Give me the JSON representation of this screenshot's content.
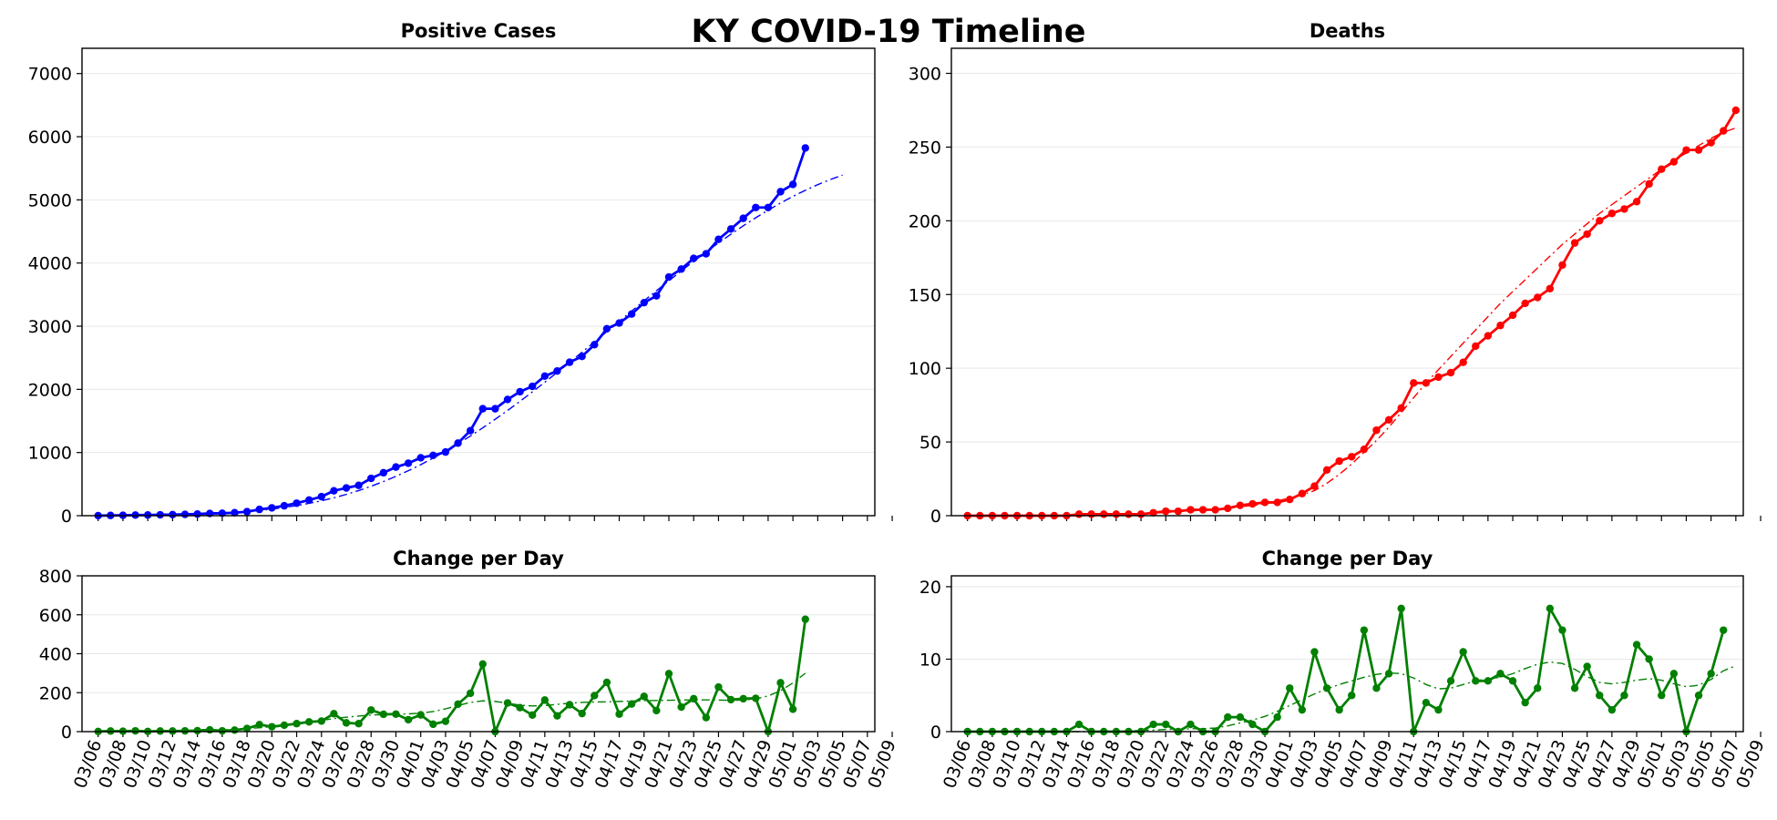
{
  "title": "KY COVID-19 Timeline",
  "colors": {
    "cases": "#0000ff",
    "deaths": "#ff0000",
    "change": "#008000",
    "grid": "#e8e8e8"
  },
  "chart_data": [
    {
      "type": "line",
      "panel": "top-left",
      "title": "Positive Cases",
      "xlabel": "",
      "ylabel": "",
      "xlim": [
        -1.3,
        62.6
      ],
      "ylim": [
        0,
        7400
      ],
      "yticks": [
        0,
        1000,
        2000,
        3000,
        4000,
        5000,
        6000,
        7000
      ],
      "grid": true,
      "series": [
        {
          "name": "Positive Cases",
          "style": "solid-markers",
          "values": [
            1,
            4,
            6,
            10,
            11,
            14,
            17,
            21,
            26,
            35,
            39,
            47,
            63,
            99,
            124,
            157,
            198,
            248,
            302,
            394,
            439,
            480,
            591,
            680,
            770,
            831,
            917,
            955,
            1008,
            1149,
            1346,
            1693,
            1693,
            1840,
            1963,
            2048,
            2210,
            2291,
            2429,
            2522,
            2707,
            2960,
            3050,
            3192,
            3373,
            3481,
            3779,
            3905,
            4074,
            4146,
            4375,
            4539,
            4708,
            4879,
            4879,
            5130,
            5245,
            5822
          ]
        },
        {
          "name": "Trend",
          "style": "dashdot",
          "values": [
            0,
            1,
            2,
            3,
            5,
            8,
            11,
            15,
            21,
            28,
            37,
            49,
            64,
            82,
            104,
            130,
            160,
            195,
            236,
            283,
            337,
            398,
            466,
            541,
            623,
            712,
            808,
            911,
            1021,
            1138,
            1261,
            1391,
            1526,
            1666,
            1811,
            1960,
            2113,
            2269,
            2428,
            2589,
            2751,
            2914,
            3077,
            3240,
            3402,
            3562,
            3720,
            3875,
            4027,
            4175,
            4319,
            4457,
            4590,
            4717,
            4837,
            4950,
            5055,
            5152,
            5241,
            5321,
            5392
          ]
        }
      ]
    },
    {
      "type": "line",
      "panel": "top-right",
      "title": "Deaths",
      "xlabel": "",
      "ylabel": "",
      "xlim": [
        -1.3,
        62.6
      ],
      "ylim": [
        0,
        317
      ],
      "yticks": [
        0,
        50,
        100,
        150,
        200,
        250,
        300
      ],
      "grid": true,
      "series": [
        {
          "name": "Deaths",
          "style": "solid-markers",
          "values": [
            0,
            0,
            0,
            0,
            0,
            0,
            0,
            0,
            0,
            1,
            1,
            1,
            1,
            1,
            1,
            2,
            3,
            3,
            4,
            4,
            4,
            5,
            7,
            8,
            9,
            9,
            11,
            15,
            20,
            31,
            37,
            40,
            45,
            58,
            65,
            73,
            90,
            90,
            94,
            97,
            104,
            115,
            122,
            129,
            136,
            144,
            148,
            154,
            170,
            185,
            191,
            200,
            205,
            208,
            213,
            225,
            235,
            240,
            248,
            248,
            253,
            261,
            275
          ]
        },
        {
          "name": "Trend",
          "style": "dashdot",
          "values": [
            0,
            0,
            0,
            0,
            0,
            0,
            0,
            0,
            0,
            0,
            0,
            0,
            1,
            1,
            1,
            2,
            2,
            3,
            3,
            4,
            4,
            5,
            6,
            7,
            8,
            10,
            12,
            14,
            17,
            22,
            28,
            35,
            43,
            51,
            60,
            70,
            80,
            90,
            99,
            108,
            117,
            126,
            135,
            144,
            152,
            160,
            168,
            176,
            184,
            191,
            198,
            205,
            211,
            217,
            223,
            229,
            235,
            241,
            246,
            251,
            256,
            260,
            263
          ]
        }
      ]
    },
    {
      "type": "line",
      "panel": "bottom-left",
      "title": "Change per Day",
      "xlabel": "",
      "ylabel": "",
      "xlim": [
        -1.3,
        62.6
      ],
      "ylim": [
        0,
        800
      ],
      "yticks": [
        0,
        200,
        400,
        600,
        800
      ],
      "grid": true,
      "x_tick_labels": [
        "03/06",
        "03/08",
        "03/10",
        "03/12",
        "03/14",
        "03/16",
        "03/18",
        "03/20",
        "03/22",
        "03/24",
        "03/26",
        "03/28",
        "03/30",
        "04/01",
        "04/03",
        "04/05",
        "04/07",
        "04/09",
        "04/11",
        "04/13",
        "04/15",
        "04/17",
        "04/19",
        "04/21",
        "04/23",
        "04/25",
        "04/27",
        "04/29",
        "05/01",
        "05/03",
        "05/05",
        "05/07",
        "05/09"
      ],
      "series": [
        {
          "name": "Change per Day",
          "style": "solid-markers",
          "values": [
            1,
            3,
            2,
            4,
            1,
            3,
            3,
            4,
            5,
            9,
            4,
            8,
            16,
            36,
            25,
            33,
            41,
            50,
            54,
            92,
            45,
            41,
            111,
            89,
            90,
            61,
            86,
            38,
            53,
            141,
            197,
            347,
            0,
            147,
            123,
            85,
            162,
            81,
            138,
            93,
            185,
            253,
            90,
            142,
            181,
            108,
            298,
            126,
            169,
            72,
            229,
            164,
            169,
            171,
            0,
            251,
            115,
            577
          ]
        },
        {
          "name": "Trend",
          "style": "dashdot",
          "values": [
            1,
            1,
            2,
            2,
            3,
            3,
            4,
            5,
            6,
            7,
            9,
            12,
            15,
            20,
            25,
            32,
            40,
            49,
            58,
            67,
            74,
            80,
            85,
            88,
            89,
            91,
            95,
            103,
            117,
            134,
            150,
            158,
            155,
            146,
            136,
            132,
            134,
            140,
            146,
            150,
            152,
            153,
            155,
            157,
            159,
            160,
            161,
            162,
            163,
            163,
            162,
            161,
            162,
            168,
            183,
            210,
            250,
            300
          ]
        }
      ]
    },
    {
      "type": "line",
      "panel": "bottom-right",
      "title": "Change per Day",
      "xlabel": "",
      "ylabel": "",
      "xlim": [
        -1.3,
        62.6
      ],
      "ylim": [
        0,
        21.5
      ],
      "yticks": [
        0,
        10,
        20
      ],
      "grid": true,
      "x_tick_labels": [
        "03/06",
        "03/08",
        "03/10",
        "03/12",
        "03/14",
        "03/16",
        "03/18",
        "03/20",
        "03/22",
        "03/24",
        "03/26",
        "03/28",
        "03/30",
        "04/01",
        "04/03",
        "04/05",
        "04/07",
        "04/09",
        "04/11",
        "04/13",
        "04/15",
        "04/17",
        "04/19",
        "04/21",
        "04/23",
        "04/25",
        "04/27",
        "04/29",
        "05/01",
        "05/03",
        "05/05",
        "05/07",
        "05/09"
      ],
      "series": [
        {
          "name": "Change per Day",
          "style": "solid-markers",
          "values": [
            0,
            0,
            0,
            0,
            0,
            0,
            0,
            0,
            0,
            1,
            0,
            0,
            0,
            0,
            0,
            1,
            1,
            0,
            1,
            0,
            0,
            2,
            2,
            1,
            0,
            2,
            6,
            3,
            11,
            6,
            3,
            5,
            14,
            6,
            8,
            17,
            0,
            4,
            3,
            7,
            11,
            7,
            7,
            8,
            7,
            4,
            6,
            17,
            14,
            6,
            9,
            5,
            3,
            5,
            12,
            10,
            5,
            8,
            0,
            5,
            8,
            14
          ]
        },
        {
          "name": "Trend",
          "style": "dashdot",
          "values": [
            0,
            0,
            0,
            0,
            0,
            0,
            0,
            0,
            0,
            0,
            0,
            0,
            0,
            0.1,
            0.2,
            0.2,
            0.3,
            0.3,
            0.4,
            0.4,
            0.5,
            0.8,
            1.2,
            1.6,
            2.1,
            2.8,
            3.6,
            4.4,
            5.2,
            5.9,
            6.5,
            7,
            7.5,
            7.9,
            8.1,
            8,
            7.4,
            6.5,
            5.9,
            6,
            6.5,
            7,
            7.3,
            7.5,
            8,
            8.7,
            9.3,
            9.6,
            9.4,
            8.6,
            7.6,
            6.8,
            6.6,
            6.8,
            7.1,
            7.3,
            7.1,
            6.6,
            6.2,
            6.4,
            7.2,
            8.4,
            9.1
          ]
        }
      ]
    }
  ]
}
